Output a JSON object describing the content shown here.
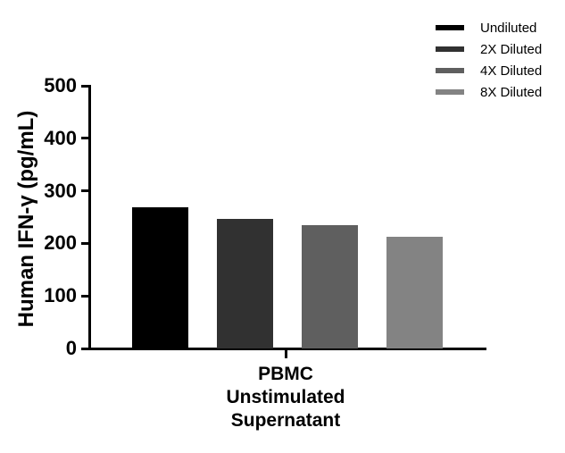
{
  "chart_data": {
    "type": "bar",
    "title": "",
    "xlabel": "PBMC\nUnstimulated\nSupernatant",
    "ylabel": "Human IFN-γ (pg/mL)",
    "ylim": [
      0,
      500
    ],
    "yticks": [
      0,
      100,
      200,
      300,
      400,
      500
    ],
    "categories": [
      "PBMC Unstimulated Supernatant"
    ],
    "series": [
      {
        "name": "Undiluted",
        "color": "#000000",
        "values": [
          268
        ]
      },
      {
        "name": "2X Diluted",
        "color": "#313131",
        "values": [
          246
        ]
      },
      {
        "name": "4X Diluted",
        "color": "#5f5f5f",
        "values": [
          235
        ]
      },
      {
        "name": "8X Diluted",
        "color": "#838383",
        "values": [
          212
        ]
      }
    ],
    "legend_position": "top-right",
    "grid": false,
    "background": "#ffffff",
    "axis_color": "#000000"
  }
}
